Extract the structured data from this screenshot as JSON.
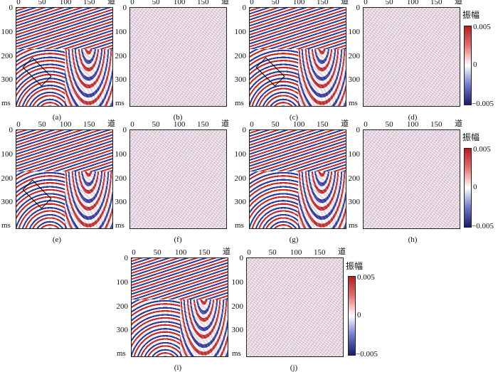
{
  "axis": {
    "x_ticks": [
      "0",
      "50",
      "100",
      "150"
    ],
    "x_unit": "道",
    "y_ticks": [
      "0",
      "100",
      "200",
      "300"
    ],
    "y_unit": "ms"
  },
  "colorbar": {
    "title": "振幅",
    "max_label": "0.005",
    "mid_label": "0",
    "min_label": "−0.005"
  },
  "panels": [
    {
      "caption": "(a)",
      "kind": "seismic",
      "marked": true
    },
    {
      "caption": "(b)",
      "kind": "noise"
    },
    {
      "caption": "(c)",
      "kind": "seismic",
      "marked": true
    },
    {
      "caption": "(d)",
      "kind": "noise"
    },
    {
      "caption": "(e)",
      "kind": "seismic",
      "marked": true
    },
    {
      "caption": "(f)",
      "kind": "noise"
    },
    {
      "caption": "(g)",
      "kind": "seismic",
      "marked": false
    },
    {
      "caption": "(h)",
      "kind": "noise"
    },
    {
      "caption": "(i)",
      "kind": "seismic",
      "marked": false
    },
    {
      "caption": "(j)",
      "kind": "noise"
    }
  ]
}
